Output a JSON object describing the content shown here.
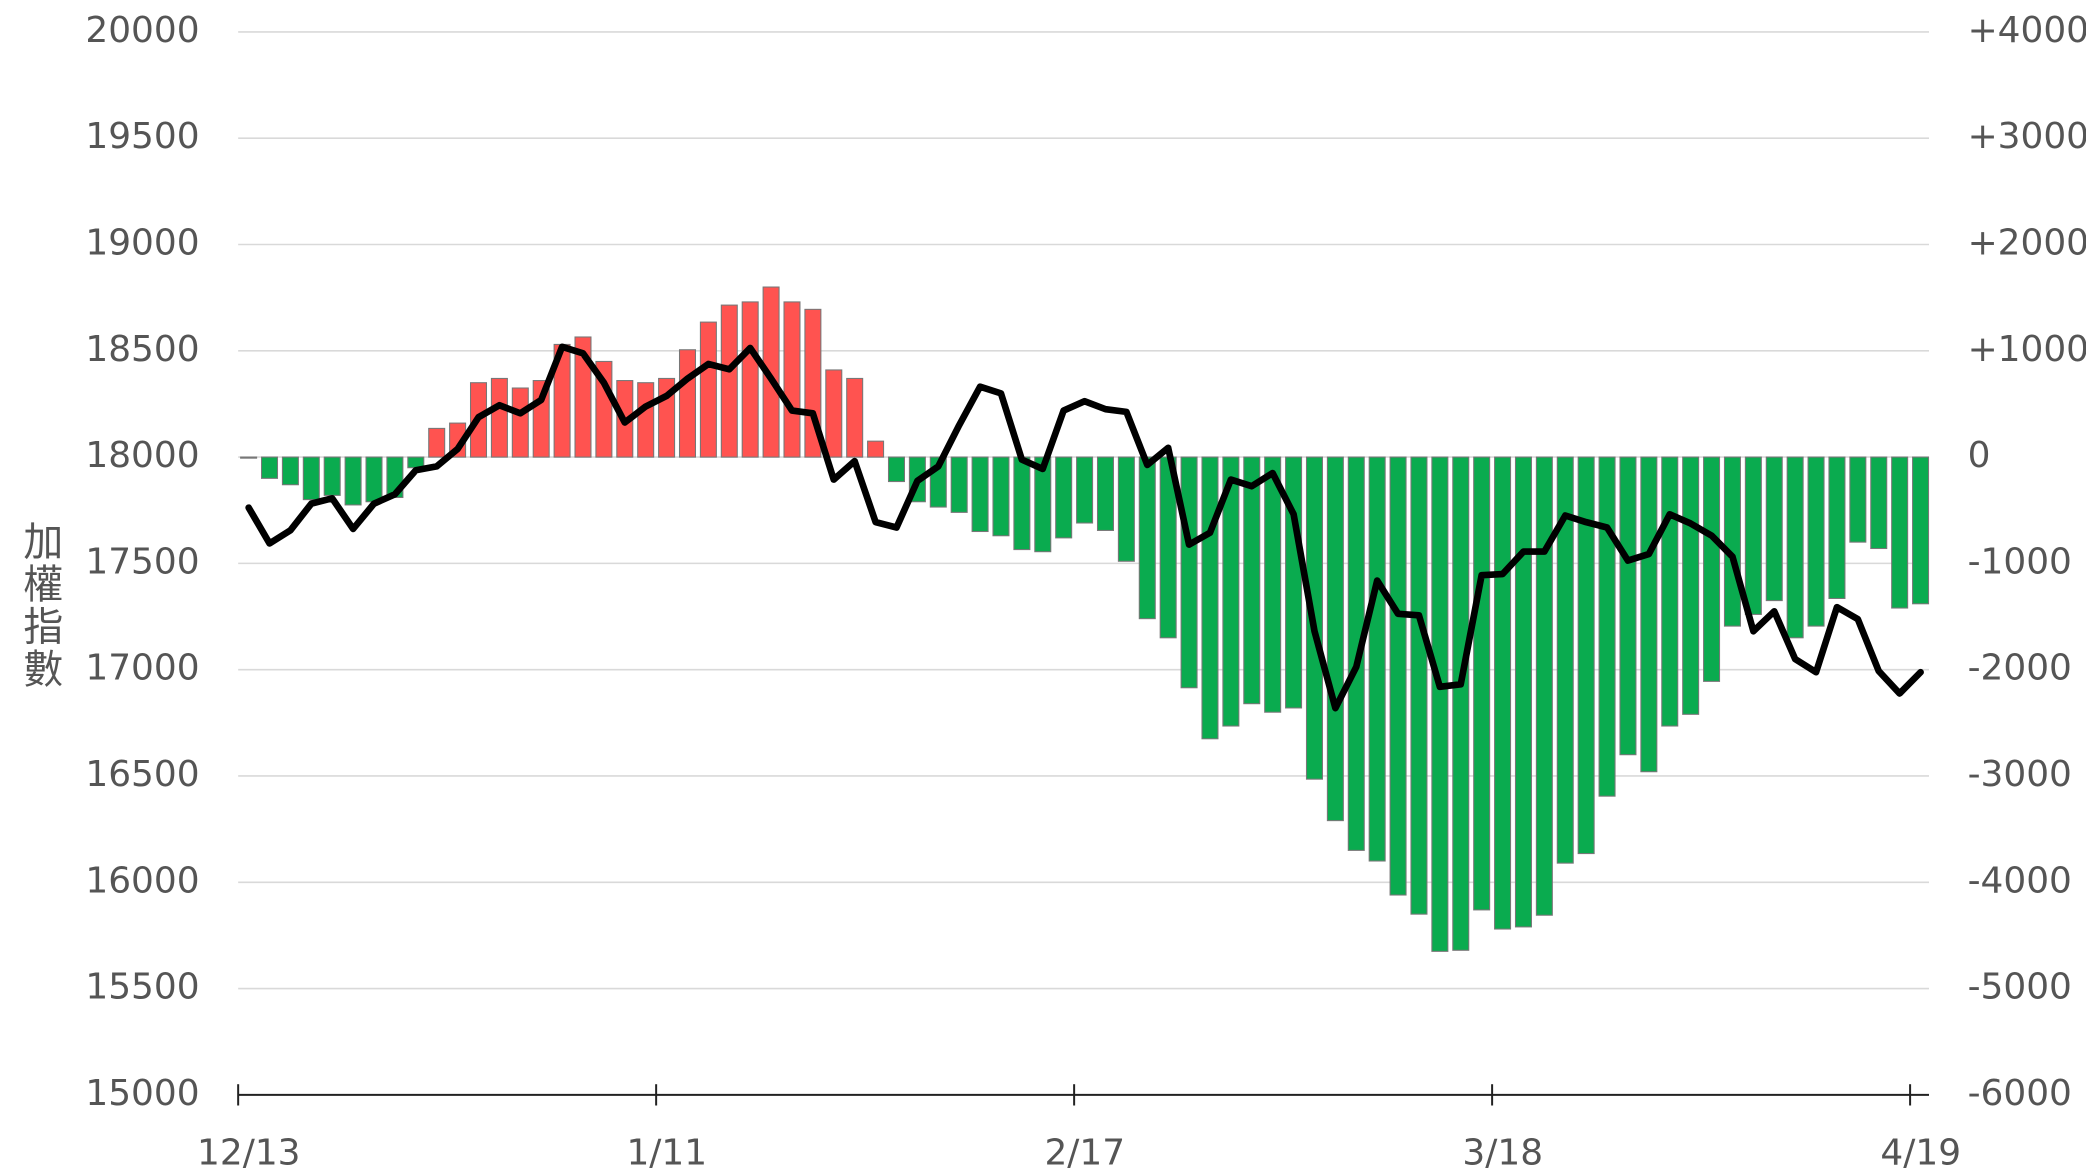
{
  "chart_data": {
    "type": "bar_line",
    "y_label": "加權指數",
    "categories": [
      "12/13",
      null,
      null,
      null,
      null,
      null,
      null,
      null,
      null,
      null,
      null,
      null,
      null,
      null,
      null,
      null,
      null,
      null,
      null,
      null,
      "1/11",
      null,
      null,
      null,
      null,
      null,
      null,
      null,
      null,
      null,
      null,
      null,
      null,
      null,
      null,
      null,
      null,
      null,
      null,
      null,
      "2/17",
      null,
      null,
      null,
      null,
      null,
      null,
      null,
      null,
      null,
      null,
      null,
      null,
      null,
      null,
      null,
      null,
      null,
      null,
      null,
      "3/18",
      null,
      null,
      null,
      null,
      null,
      null,
      null,
      null,
      null,
      null,
      null,
      null,
      null,
      null,
      null,
      null,
      null,
      null,
      null,
      "4/19"
    ],
    "series": [
      {
        "type": "bar",
        "axis": "y2",
        "positive_color": "#ff5350",
        "negative_color": "#0aab4f",
        "values": [
          -10,
          -200,
          -260,
          -400,
          -360,
          -450,
          -420,
          -380,
          -100,
          270,
          320,
          700,
          740,
          650,
          720,
          1060,
          1130,
          900,
          720,
          700,
          740,
          1010,
          1270,
          1430,
          1460,
          1600,
          1460,
          1390,
          820,
          740,
          150,
          -230,
          -420,
          -470,
          -520,
          -700,
          -740,
          -870,
          -890,
          -760,
          -620,
          -690,
          -980,
          -1520,
          -1700,
          -2170,
          -2650,
          -2530,
          -2320,
          -2400,
          -2360,
          -3030,
          -3420,
          -3700,
          -3800,
          -4120,
          -4300,
          -4650,
          -4640,
          -4260,
          -4440,
          -4420,
          -4310,
          -3820,
          -3730,
          -3190,
          -2800,
          -2960,
          -2530,
          -2420,
          -2110,
          -1590,
          -1480,
          -1350,
          -1700,
          -1590,
          -1330,
          -800,
          -860,
          -1420,
          -1380
        ]
      },
      {
        "type": "line",
        "color": "#000000",
        "values": [
          17762,
          17594,
          17656,
          17781,
          17806,
          17662,
          17781,
          17825,
          17938,
          17956,
          18038,
          18188,
          18244,
          18206,
          18269,
          18519,
          18488,
          18350,
          18163,
          18238,
          18288,
          18369,
          18438,
          18413,
          18513,
          18369,
          18219,
          18206,
          17894,
          17981,
          17694,
          17669,
          17888,
          17956,
          18150,
          18331,
          18300,
          17988,
          17944,
          18219,
          18263,
          18225,
          18213,
          17963,
          18044,
          17588,
          17644,
          17894,
          17863,
          17925,
          17731,
          17181,
          16819,
          17013,
          17419,
          17263,
          17256,
          16919,
          16931,
          17444,
          17450,
          17556,
          17556,
          17725,
          17694,
          17669,
          17513,
          17544,
          17731,
          17688,
          17631,
          17531,
          17181,
          17275,
          17050,
          16988,
          17294,
          17238,
          16994,
          16888,
          16988
        ]
      }
    ],
    "ylim": [
      15000,
      20000
    ],
    "yticks": [
      15000,
      15500,
      16000,
      16500,
      17000,
      17500,
      18000,
      18500,
      19000,
      19500,
      20000
    ],
    "y2lim": [
      -6000,
      4000
    ],
    "y2ticks": [
      -6000,
      -5000,
      -4000,
      -3000,
      -2000,
      -1000,
      0,
      {
        "value": 1000,
        "label": "+1000"
      },
      {
        "value": 2000,
        "label": "+2000"
      },
      {
        "value": 3000,
        "label": "+3000"
      },
      {
        "value": 4000,
        "label": "+4000"
      }
    ],
    "grid": true
  }
}
